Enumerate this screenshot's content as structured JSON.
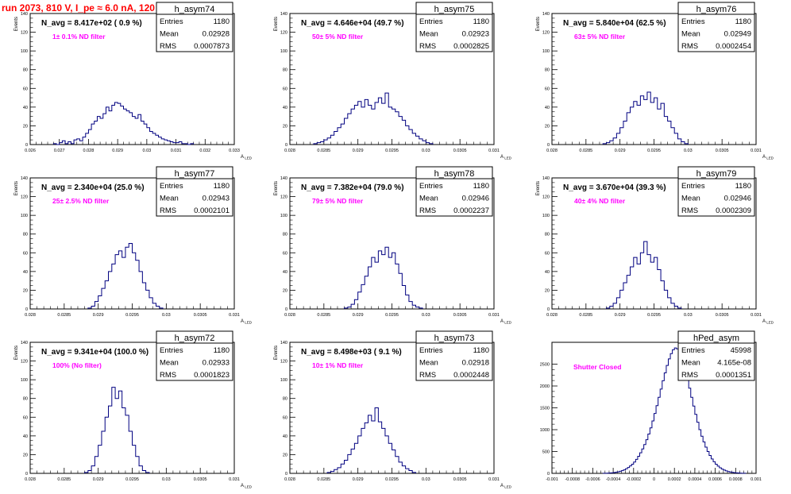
{
  "run_title": "run 2073,   810 V, I_pe ≈ 6.0 nA, 120 Hz",
  "colors": {
    "title": "#ff0000",
    "filter_text": "#ff00ff",
    "histogram_line": "#000080",
    "frame": "#000000"
  },
  "chart_data": [
    {
      "type": "bar",
      "name": "h_asym74",
      "title": "N_avg = 8.417e+02 ( 0.9 %)",
      "annotation": "1± 0.1% ND filter",
      "ylabel": "Events",
      "xlabel": "A_LED",
      "stats": [
        [
          "Entries",
          "1180"
        ],
        [
          "Mean",
          "0.02928"
        ],
        [
          "RMS",
          "0.0007873"
        ]
      ],
      "xlim": [
        0.026,
        0.033
      ],
      "ylim": [
        0,
        140
      ],
      "xticks": [
        0.026,
        0.027,
        0.028,
        0.029,
        0.03,
        0.031,
        0.032,
        0.033
      ],
      "xtick_labels": [
        "0.026",
        "0.027",
        "0.028",
        "0.029",
        "0.03",
        "0.031",
        "0.032",
        "0.033"
      ],
      "yticks": [
        0,
        20,
        40,
        60,
        80,
        100,
        120,
        140
      ],
      "bin_start": 0.0268,
      "bin_width": 0.0001,
      "values": [
        1,
        0,
        2,
        4,
        1,
        3,
        1,
        5,
        6,
        4,
        8,
        12,
        16,
        22,
        25,
        30,
        28,
        33,
        40,
        36,
        42,
        45,
        44,
        41,
        38,
        36,
        34,
        30,
        28,
        32,
        25,
        22,
        18,
        14,
        12,
        10,
        8,
        6,
        5,
        4,
        3,
        2,
        2,
        3,
        1,
        1,
        0,
        1
      ]
    },
    {
      "type": "bar",
      "name": "h_asym75",
      "title": "N_avg = 4.646e+04 (49.7 %)",
      "annotation": "50± 5% ND filter",
      "ylabel": "Events",
      "xlabel": "A_LED",
      "stats": [
        [
          "Entries",
          "1180"
        ],
        [
          "Mean",
          "0.02923"
        ],
        [
          "RMS",
          "0.0002825"
        ]
      ],
      "xlim": [
        0.028,
        0.031
      ],
      "ylim": [
        0,
        140
      ],
      "xticks": [
        0.028,
        0.0285,
        0.029,
        0.0295,
        0.03,
        0.0305,
        0.031
      ],
      "xtick_labels": [
        "0.028",
        "0.0285",
        "0.029",
        "0.0295",
        "0.03",
        "0.0305",
        "0.031"
      ],
      "yticks": [
        0,
        20,
        40,
        60,
        80,
        100,
        120,
        140
      ],
      "bin_start": 0.02835,
      "bin_width": 5e-05,
      "values": [
        1,
        2,
        3,
        5,
        7,
        10,
        14,
        18,
        22,
        28,
        33,
        38,
        42,
        46,
        40,
        48,
        42,
        38,
        45,
        50,
        44,
        55,
        40,
        38,
        35,
        30,
        26,
        20,
        16,
        12,
        9,
        6,
        4,
        2,
        1
      ]
    },
    {
      "type": "bar",
      "name": "h_asym76",
      "title": "N_avg = 5.840e+04 (62.5 %)",
      "annotation": "63± 5% ND filter",
      "ylabel": "Events",
      "xlabel": "A_LED",
      "stats": [
        [
          "Entries",
          "1180"
        ],
        [
          "Mean",
          "0.02949"
        ],
        [
          "RMS",
          "0.0002454"
        ]
      ],
      "xlim": [
        0.028,
        0.031
      ],
      "ylim": [
        0,
        140
      ],
      "xticks": [
        0.028,
        0.0285,
        0.029,
        0.0295,
        0.03,
        0.0305,
        0.031
      ],
      "xtick_labels": [
        "0.028",
        "0.0285",
        "0.029",
        "0.0295",
        "0.03",
        "0.0305",
        "0.031"
      ],
      "yticks": [
        0,
        20,
        40,
        60,
        80,
        100,
        120,
        140
      ],
      "bin_start": 0.02875,
      "bin_width": 5e-05,
      "values": [
        1,
        2,
        4,
        7,
        12,
        18,
        25,
        34,
        40,
        46,
        42,
        52,
        48,
        56,
        45,
        50,
        38,
        44,
        30,
        25,
        18,
        12,
        6,
        3,
        1
      ]
    },
    {
      "type": "bar",
      "name": "h_asym77",
      "title": "N_avg = 2.340e+04 (25.0 %)",
      "annotation": "25± 2.5% ND filter",
      "ylabel": "Events",
      "xlabel": "A_LED",
      "stats": [
        [
          "Entries",
          "1180"
        ],
        [
          "Mean",
          "0.02943"
        ],
        [
          "RMS",
          "0.0002101"
        ]
      ],
      "xlim": [
        0.028,
        0.031
      ],
      "ylim": [
        0,
        140
      ],
      "xticks": [
        0.028,
        0.0285,
        0.029,
        0.0295,
        0.03,
        0.0305,
        0.031
      ],
      "xtick_labels": [
        "0.028",
        "0.0285",
        "0.029",
        "0.0295",
        "0.03",
        "0.0305",
        "0.031"
      ],
      "yticks": [
        0,
        20,
        40,
        60,
        80,
        100,
        120,
        140
      ],
      "bin_start": 0.02885,
      "bin_width": 5e-05,
      "values": [
        1,
        3,
        8,
        14,
        22,
        30,
        40,
        48,
        58,
        62,
        55,
        66,
        70,
        60,
        52,
        40,
        28,
        20,
        12,
        6,
        3,
        1
      ]
    },
    {
      "type": "bar",
      "name": "h_asym78",
      "title": "N_avg = 7.382e+04 (79.0 %)",
      "annotation": "79± 5% ND filter",
      "ylabel": "Events",
      "xlabel": "A_LED",
      "stats": [
        [
          "Entries",
          "1180"
        ],
        [
          "Mean",
          "0.02946"
        ],
        [
          "RMS",
          "0.0002237"
        ]
      ],
      "xlim": [
        0.028,
        0.031
      ],
      "ylim": [
        0,
        140
      ],
      "xticks": [
        0.028,
        0.0285,
        0.029,
        0.0295,
        0.03,
        0.0305,
        0.031
      ],
      "xtick_labels": [
        "0.028",
        "0.0285",
        "0.029",
        "0.0295",
        "0.03",
        "0.0305",
        "0.031"
      ],
      "yticks": [
        0,
        20,
        40,
        60,
        80,
        100,
        120,
        140
      ],
      "bin_start": 0.0288,
      "bin_width": 5e-05,
      "values": [
        1,
        2,
        5,
        10,
        18,
        26,
        35,
        45,
        55,
        50,
        62,
        58,
        66,
        55,
        60,
        48,
        38,
        25,
        15,
        8,
        4,
        2,
        1
      ]
    },
    {
      "type": "bar",
      "name": "h_asym79",
      "title": "N_avg = 3.670e+04 (39.3 %)",
      "annotation": "40± 4% ND filter",
      "ylabel": "Events",
      "xlabel": "A_LED",
      "stats": [
        [
          "Entries",
          "1180"
        ],
        [
          "Mean",
          "0.02946"
        ],
        [
          "RMS",
          "0.0002309"
        ]
      ],
      "xlim": [
        0.028,
        0.031
      ],
      "ylim": [
        0,
        140
      ],
      "xticks": [
        0.028,
        0.0285,
        0.029,
        0.0295,
        0.03,
        0.0305,
        0.031
      ],
      "xtick_labels": [
        "0.028",
        "0.0285",
        "0.029",
        "0.0295",
        "0.03",
        "0.0305",
        "0.031"
      ],
      "yticks": [
        0,
        20,
        40,
        60,
        80,
        100,
        120,
        140
      ],
      "bin_start": 0.0288,
      "bin_width": 5e-05,
      "values": [
        1,
        3,
        6,
        12,
        20,
        28,
        36,
        45,
        55,
        48,
        60,
        72,
        58,
        50,
        55,
        42,
        30,
        20,
        12,
        6,
        3,
        1
      ]
    },
    {
      "type": "bar",
      "name": "h_asym72",
      "title": "N_avg = 9.341e+04 (100.0 %)",
      "annotation": "100% (No filter)",
      "ylabel": "Events",
      "xlabel": "A_LED",
      "stats": [
        [
          "Entries",
          "1180"
        ],
        [
          "Mean",
          "0.02933"
        ],
        [
          "RMS",
          "0.0001823"
        ]
      ],
      "xlim": [
        0.028,
        0.031
      ],
      "ylim": [
        0,
        140
      ],
      "xticks": [
        0.028,
        0.0285,
        0.029,
        0.0295,
        0.03,
        0.0305,
        0.031
      ],
      "xtick_labels": [
        "0.028",
        "0.0285",
        "0.029",
        "0.0295",
        "0.03",
        "0.0305",
        "0.031"
      ],
      "yticks": [
        0,
        20,
        40,
        60,
        80,
        100,
        120,
        140
      ],
      "bin_start": 0.0288,
      "bin_width": 5e-05,
      "values": [
        1,
        3,
        8,
        18,
        30,
        45,
        60,
        72,
        92,
        80,
        88,
        70,
        62,
        45,
        30,
        18,
        8,
        3,
        1
      ]
    },
    {
      "type": "bar",
      "name": "h_asym73",
      "title": "N_avg = 8.498e+03 ( 9.1 %)",
      "annotation": "10± 1% ND filter",
      "ylabel": "Events",
      "xlabel": "A_LED",
      "stats": [
        [
          "Entries",
          "1180"
        ],
        [
          "Mean",
          "0.02918"
        ],
        [
          "RMS",
          "0.0002448"
        ]
      ],
      "xlim": [
        0.028,
        0.031
      ],
      "ylim": [
        0,
        140
      ],
      "xticks": [
        0.028,
        0.0285,
        0.029,
        0.0295,
        0.03,
        0.0305,
        0.031
      ],
      "xtick_labels": [
        "0.028",
        "0.0285",
        "0.029",
        "0.0295",
        "0.03",
        "0.0305",
        "0.031"
      ],
      "yticks": [
        0,
        20,
        40,
        60,
        80,
        100,
        120,
        140
      ],
      "bin_start": 0.02855,
      "bin_width": 5e-05,
      "values": [
        1,
        2,
        4,
        6,
        10,
        14,
        20,
        26,
        32,
        40,
        48,
        54,
        62,
        56,
        70,
        55,
        48,
        40,
        32,
        25,
        18,
        12,
        8,
        5,
        3,
        1
      ]
    },
    {
      "type": "bar",
      "name": "hPed_asym",
      "title": "",
      "annotation": "Shutter Closed",
      "ylabel": "",
      "xlabel": "",
      "stats": [
        [
          "Entries",
          "45998"
        ],
        [
          "Mean",
          "4.165e-08"
        ],
        [
          "RMS",
          "0.0001351"
        ]
      ],
      "xlim": [
        -0.001,
        0.001
      ],
      "ylim": [
        0,
        3000
      ],
      "xticks": [
        -0.001,
        -0.0008,
        -0.0006,
        -0.0004,
        -0.0002,
        0,
        0.0002,
        0.0004,
        0.0006,
        0.0008,
        0.001
      ],
      "xtick_labels": [
        "-0.001",
        "-0.0008",
        "-0.0006",
        "-0.0004",
        "-0.0002",
        "0",
        "0.0002",
        "0.0004",
        "0.0006",
        "0.0008",
        "0.001"
      ],
      "yticks": [
        0,
        500,
        1000,
        1500,
        2000,
        2500
      ],
      "bin_start": -0.0005,
      "bin_width": 2e-05,
      "values": [
        2,
        3,
        5,
        8,
        12,
        18,
        25,
        35,
        48,
        62,
        80,
        105,
        135,
        170,
        210,
        260,
        320,
        390,
        470,
        560,
        660,
        770,
        900,
        1040,
        1200,
        1370,
        1550,
        1740,
        1930,
        2120,
        2300,
        2470,
        2620,
        2740,
        2830,
        2870,
        2850,
        2790,
        2680,
        2530,
        2350,
        2160,
        1950,
        1740,
        1540,
        1350,
        1170,
        1000,
        850,
        720,
        600,
        500,
        410,
        330,
        265,
        210,
        165,
        128,
        98,
        75,
        56,
        42,
        31,
        23,
        16,
        11,
        8,
        5,
        3,
        2
      ]
    }
  ]
}
